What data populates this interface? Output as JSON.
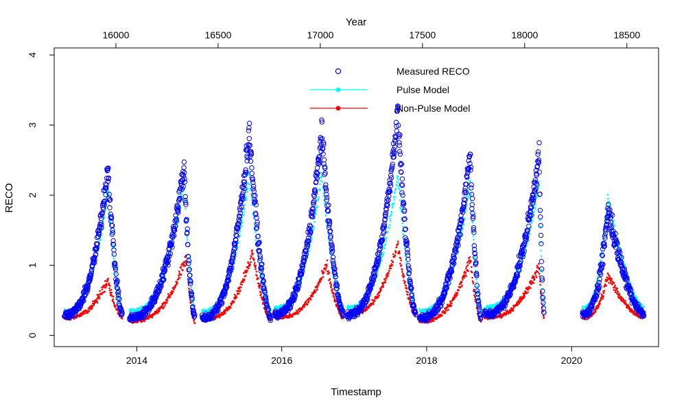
{
  "chart_data": {
    "type": "scatter",
    "title": "",
    "xlabel": "Timestamp",
    "ylabel": "RECO",
    "x2label": "Year",
    "x_ticks": [
      "2014",
      "2016",
      "2018",
      "2020"
    ],
    "x_tick_years": [
      2014,
      2016,
      2018,
      2020
    ],
    "x2_ticks": [
      "16000",
      "16500",
      "17000",
      "17500",
      "18000",
      "18500"
    ],
    "x2_tick_values": [
      16000,
      16500,
      17000,
      17500,
      18000,
      18500
    ],
    "x2_origin_note": "",
    "y_ticks": [
      "0",
      "1",
      "2",
      "3",
      "4"
    ],
    "y_tick_values": [
      0,
      1,
      2,
      3,
      4
    ],
    "xlim": [
      2012.86,
      2021.2
    ],
    "x2lim": [
      15698,
      18655
    ],
    "ylim": [
      -0.16,
      4.1
    ],
    "grid": false,
    "legend_position": "top-center",
    "legend": [
      {
        "label": "Measured RECO",
        "marker": "open-circle",
        "color": "#0000ff"
      },
      {
        "label": "Pulse Model",
        "marker": "line-dot",
        "color": "#00ffff"
      },
      {
        "label": "Non-Pulse Model",
        "marker": "line-dot",
        "color": "#ff0000"
      }
    ],
    "series": [
      {
        "name": "Measured RECO",
        "color": "#0000ff",
        "style": "open-circle",
        "seasons": [
          {
            "start": 2013.0,
            "end": 2013.8,
            "base": 0.3,
            "peak": 2.4,
            "peak_at": 2013.6
          },
          {
            "start": 2013.9,
            "end": 2014.8,
            "base": 0.25,
            "peak": 2.4,
            "peak_at": 2014.65
          },
          {
            "start": 2014.9,
            "end": 2015.85,
            "base": 0.25,
            "peak": 2.9,
            "peak_at": 2015.55
          },
          {
            "start": 2015.9,
            "end": 2016.85,
            "base": 0.3,
            "peak": 2.9,
            "peak_at": 2016.55
          },
          {
            "start": 2016.9,
            "end": 2017.85,
            "base": 0.3,
            "peak": 3.2,
            "peak_at": 2017.6
          },
          {
            "start": 2017.9,
            "end": 2018.75,
            "base": 0.25,
            "peak": 2.6,
            "peak_at": 2018.6
          },
          {
            "start": 2018.8,
            "end": 2019.62,
            "base": 0.3,
            "peak": 2.6,
            "peak_at": 2019.55
          },
          {
            "start": 2020.15,
            "end": 2021.0,
            "base": 0.3,
            "peak": 1.8,
            "peak_at": 2020.5
          }
        ]
      },
      {
        "name": "Pulse Model",
        "color": "#00ffff",
        "style": "dot",
        "seasons": [
          {
            "start": 2013.0,
            "end": 2013.8,
            "base": 0.35,
            "peak": 2.1,
            "peak_at": 2013.6
          },
          {
            "start": 2013.9,
            "end": 2014.8,
            "base": 0.35,
            "peak": 2.2,
            "peak_at": 2014.65
          },
          {
            "start": 2014.9,
            "end": 2015.85,
            "base": 0.35,
            "peak": 2.3,
            "peak_at": 2015.55
          },
          {
            "start": 2015.9,
            "end": 2016.85,
            "base": 0.4,
            "peak": 2.3,
            "peak_at": 2016.55
          },
          {
            "start": 2016.9,
            "end": 2017.85,
            "base": 0.4,
            "peak": 2.3,
            "peak_at": 2017.6
          },
          {
            "start": 2017.9,
            "end": 2018.75,
            "base": 0.35,
            "peak": 2.2,
            "peak_at": 2018.6
          },
          {
            "start": 2018.8,
            "end": 2019.62,
            "base": 0.4,
            "peak": 2.2,
            "peak_at": 2019.55
          },
          {
            "start": 2020.15,
            "end": 2021.0,
            "base": 0.4,
            "peak": 1.95,
            "peak_at": 2020.5
          }
        ]
      },
      {
        "name": "Non-Pulse Model",
        "color": "#ff0000",
        "style": "dot",
        "seasons": [
          {
            "start": 2013.0,
            "end": 2013.8,
            "base": 0.25,
            "peak": 0.8,
            "peak_at": 2013.6
          },
          {
            "start": 2013.9,
            "end": 2014.8,
            "base": 0.2,
            "peak": 1.1,
            "peak_at": 2014.68
          },
          {
            "start": 2014.9,
            "end": 2015.85,
            "base": 0.22,
            "peak": 1.2,
            "peak_at": 2015.6
          },
          {
            "start": 2015.9,
            "end": 2016.85,
            "base": 0.25,
            "peak": 1.0,
            "peak_at": 2016.62
          },
          {
            "start": 2016.9,
            "end": 2017.85,
            "base": 0.3,
            "peak": 1.3,
            "peak_at": 2017.6
          },
          {
            "start": 2017.9,
            "end": 2018.75,
            "base": 0.2,
            "peak": 1.1,
            "peak_at": 2018.6
          },
          {
            "start": 2018.8,
            "end": 2019.62,
            "base": 0.25,
            "peak": 1.0,
            "peak_at": 2019.55
          },
          {
            "start": 2020.15,
            "end": 2021.0,
            "base": 0.25,
            "peak": 0.85,
            "peak_at": 2020.5
          }
        ]
      }
    ]
  }
}
